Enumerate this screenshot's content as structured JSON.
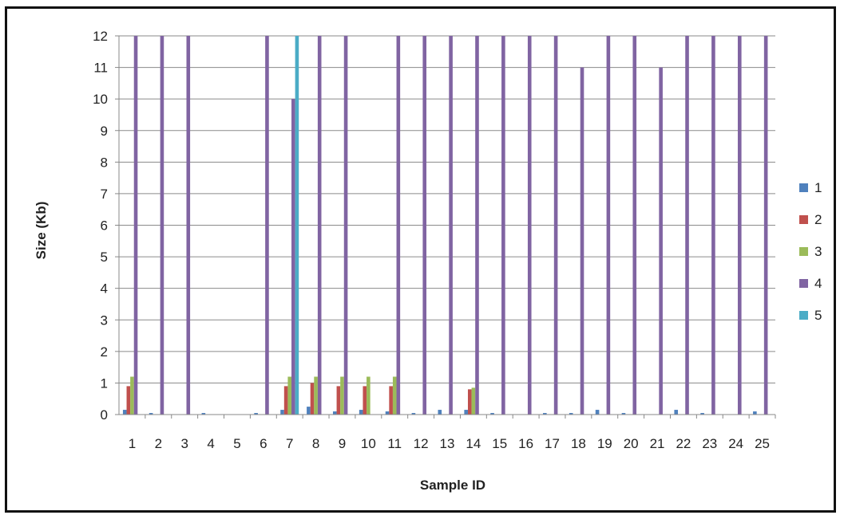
{
  "chart_data": {
    "type": "bar",
    "title": "",
    "xlabel": "Sample ID",
    "ylabel": "Size (Kb)",
    "ylim": [
      0,
      12
    ],
    "yticks": [
      0,
      1,
      2,
      3,
      4,
      5,
      6,
      7,
      8,
      9,
      10,
      11,
      12
    ],
    "grid": true,
    "legend_position": "right",
    "categories": [
      "1",
      "2",
      "3",
      "4",
      "5",
      "6",
      "7",
      "8",
      "9",
      "10",
      "11",
      "12",
      "13",
      "14",
      "15",
      "16",
      "17",
      "18",
      "19",
      "20",
      "21",
      "22",
      "23",
      "24",
      "25"
    ],
    "series": [
      {
        "name": "1",
        "color": "#4f81bd",
        "values": [
          0.15,
          0.05,
          0,
          0.05,
          0,
          0.05,
          0.15,
          0.25,
          0.1,
          0.15,
          0.1,
          0.05,
          0.15,
          0.15,
          0.05,
          0,
          0.05,
          0.05,
          0.15,
          0.05,
          0,
          0.15,
          0.05,
          0,
          0.1
        ]
      },
      {
        "name": "2",
        "color": "#c0504d",
        "values": [
          0.9,
          0,
          0,
          0,
          0,
          0,
          0.9,
          1.0,
          0.9,
          0.9,
          0.9,
          0,
          0,
          0.8,
          0,
          0,
          0,
          0,
          0,
          0,
          0,
          0,
          0,
          0,
          0
        ]
      },
      {
        "name": "3",
        "color": "#9bbb59",
        "values": [
          1.2,
          0,
          0,
          0,
          0,
          0,
          1.2,
          1.2,
          1.2,
          1.2,
          1.2,
          0,
          0,
          0.85,
          0,
          0,
          0,
          0,
          0,
          0,
          0,
          0,
          0,
          0,
          0
        ]
      },
      {
        "name": "4",
        "color": "#8064a2",
        "values": [
          12,
          12,
          12,
          0,
          0,
          12,
          10,
          12,
          12,
          0,
          12,
          12,
          12,
          12,
          12,
          12,
          12,
          11,
          12,
          12,
          11,
          12,
          12,
          12,
          12
        ]
      },
      {
        "name": "5",
        "color": "#4bacc6",
        "values": [
          0,
          0,
          0,
          0,
          0,
          0,
          12,
          0,
          0,
          0,
          0,
          0,
          0,
          0,
          0,
          0,
          0,
          0,
          0,
          0,
          0,
          0,
          0,
          0,
          0
        ]
      }
    ]
  }
}
